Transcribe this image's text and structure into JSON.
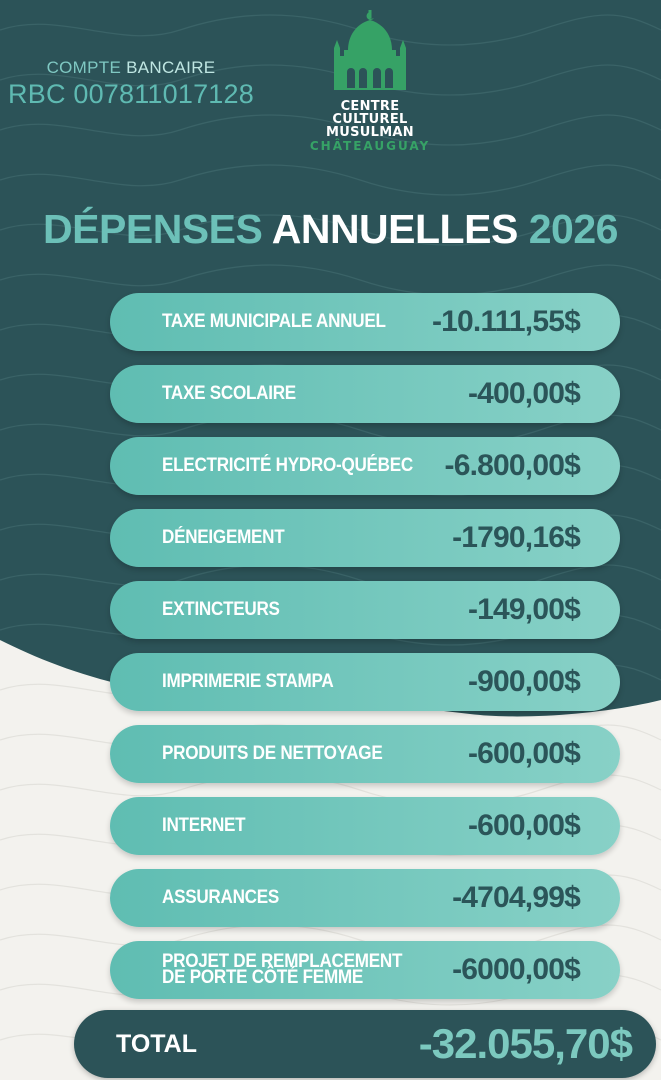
{
  "bank": {
    "label_part1": "COMPTE ",
    "label_part2": "BANCAIRE",
    "account": "RBC 007811017128"
  },
  "logo": {
    "icon": "mosque-dome-icon",
    "line1": "CENTRE",
    "line2": "CULTUREL",
    "line3": "MUSULMAN",
    "line4": "CHÂTEAUGUAY"
  },
  "title": {
    "part1": "DÉPENSES",
    "part2": "ANNUELLES",
    "part3": "2026"
  },
  "expenses": [
    {
      "label": "TAXE MUNICIPALE ANNUEL",
      "amount": "-10.111,55$"
    },
    {
      "label": "TAXE SCOLAIRE",
      "amount": "-400,00$"
    },
    {
      "label": "ELECTRICITÉ HYDRO-QUÉBEC",
      "amount": "-6.800,00$"
    },
    {
      "label": "DÉNEIGEMENT",
      "amount": "-1790,16$"
    },
    {
      "label": "EXTINCTEURS",
      "amount": "-149,00$"
    },
    {
      "label": "IMPRIMERIE STAMPA",
      "amount": "-900,00$"
    },
    {
      "label": "PRODUITS DE NETTOYAGE",
      "amount": "-600,00$"
    },
    {
      "label": "INTERNET",
      "amount": "-600,00$"
    },
    {
      "label": "ASSURANCES",
      "amount": "-4704,99$"
    },
    {
      "label": "PROJET DE REMPLACEMENT DE PORTE CÔTÉ FEMME",
      "amount": "-6000,00$"
    }
  ],
  "total": {
    "label": "TOTAL",
    "amount": "-32.055,70$"
  },
  "colors": {
    "dark_teal": "#2c5358",
    "accent_teal": "#6cc0b8",
    "logo_green": "#36a266",
    "light_bg": "#f3f2ee"
  }
}
